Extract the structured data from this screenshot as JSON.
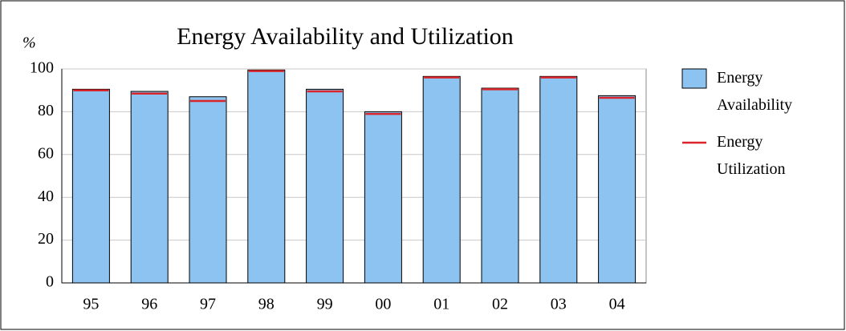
{
  "chart_data": {
    "type": "bar",
    "title": "Energy Availability and Utilization",
    "y_label": "%",
    "categories": [
      "95",
      "96",
      "97",
      "98",
      "99",
      "00",
      "01",
      "02",
      "03",
      "04"
    ],
    "series": [
      {
        "name": "Energy Availability",
        "color": "#8dc3f0",
        "style": "bar",
        "values": [
          90.5,
          89.5,
          87,
          99.5,
          90.5,
          80,
          96.5,
          91,
          96.5,
          87.5
        ]
      },
      {
        "name": "Energy Utilization",
        "color": "#d9252a",
        "style": "tick",
        "values": [
          90,
          88.5,
          85,
          99,
          89.5,
          79,
          96,
          90.5,
          96,
          86.5
        ]
      }
    ],
    "ylim": [
      0,
      100
    ],
    "yticks": [
      0,
      20,
      40,
      60,
      80,
      100
    ],
    "grid": true,
    "legend": "right"
  }
}
